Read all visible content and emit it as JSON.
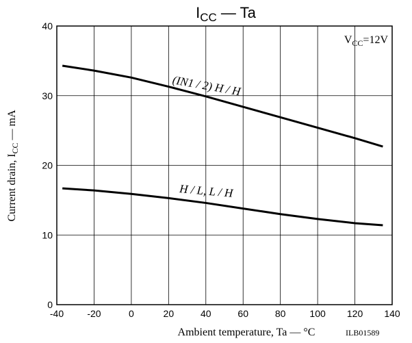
{
  "chart_data": {
    "type": "line",
    "title": [
      "I",
      "CC",
      " — Ta"
    ],
    "x_label": "Ambient temperature,  Ta — °C",
    "y_label": [
      "Current drain, I",
      "CC",
      " — mA"
    ],
    "annotation": [
      "V",
      "CC",
      "=12V"
    ],
    "figure_id": "ILB01589",
    "x": [
      -37,
      -20,
      0,
      20,
      40,
      60,
      80,
      100,
      120,
      135
    ],
    "series": [
      {
        "name": "(IN1 / 2) H / H",
        "color": "#000000",
        "values": [
          34.3,
          33.6,
          32.6,
          31.3,
          29.9,
          28.4,
          26.9,
          25.4,
          23.9,
          22.7
        ]
      },
      {
        "name": "H / L, L / H",
        "color": "#000000",
        "values": [
          16.7,
          16.4,
          15.9,
          15.3,
          14.6,
          13.8,
          13.0,
          12.3,
          11.7,
          11.4
        ]
      }
    ],
    "xlim": [
      -40,
      140
    ],
    "ylim": [
      0,
      40
    ],
    "xticks": [
      -40,
      -20,
      0,
      20,
      40,
      60,
      80,
      100,
      120,
      140
    ],
    "yticks": [
      0,
      10,
      20,
      30,
      40
    ],
    "grid": true
  }
}
